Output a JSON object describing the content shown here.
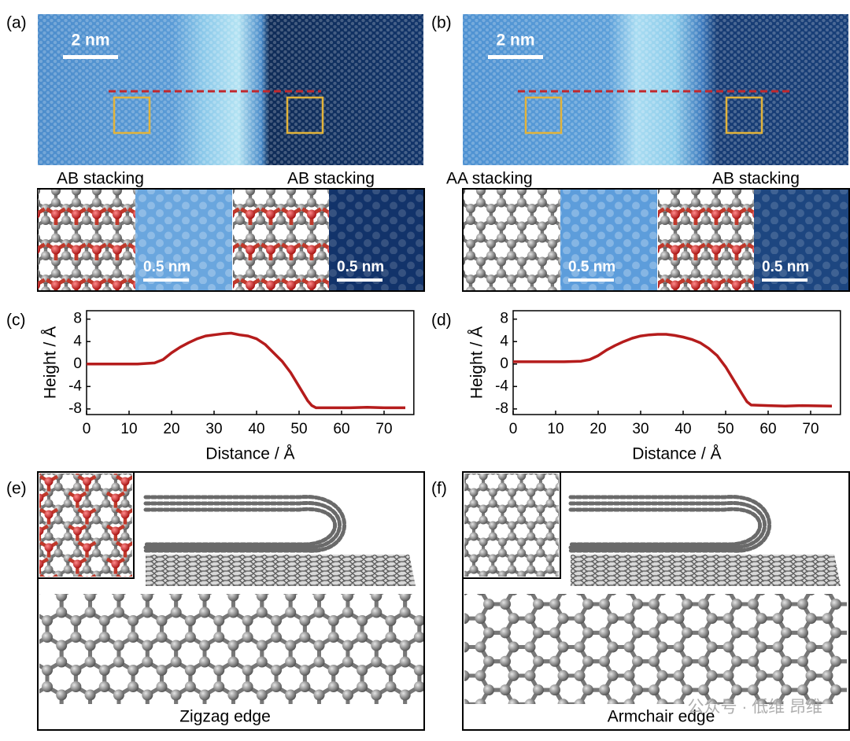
{
  "panels": [
    {
      "label": "(a)",
      "scale_bar": "2 nm",
      "stacking": [
        "AB stacking",
        "AB stacking"
      ],
      "inset_scale": [
        "0.5 nm",
        "0.5 nm"
      ]
    },
    {
      "label": "(b)",
      "scale_bar": "2 nm",
      "stacking": [
        "AA stacking",
        "AB stacking"
      ],
      "inset_scale": [
        "0.5 nm",
        "0.5 nm"
      ]
    }
  ],
  "chart_data": [
    {
      "type": "line",
      "label": "(c)",
      "xlabel": "Distance / Å",
      "ylabel": "Height / Å",
      "x": [
        0,
        4,
        8,
        12,
        16,
        18,
        20,
        22,
        24,
        26,
        28,
        30,
        32,
        34,
        36,
        38,
        40,
        42,
        44,
        46,
        48,
        50,
        52,
        53,
        54,
        58,
        62,
        66,
        70,
        75
      ],
      "series": [
        {
          "color": "#b51c1c",
          "values": [
            0,
            0,
            0,
            0,
            0.2,
            0.8,
            2,
            3,
            3.8,
            4.5,
            5,
            5.2,
            5.4,
            5.5,
            5.2,
            5,
            4.5,
            3.5,
            2,
            0.5,
            -1.5,
            -4,
            -6.5,
            -7.4,
            -7.8,
            -7.8,
            -7.8,
            -7.7,
            -7.8,
            -7.8
          ]
        }
      ],
      "xlim": [
        0,
        77
      ],
      "ylim": [
        -9,
        9.5
      ],
      "xticks": [
        0,
        10,
        20,
        30,
        40,
        50,
        60,
        70
      ],
      "yticks": [
        -8,
        -4,
        0,
        4,
        8
      ]
    },
    {
      "type": "line",
      "label": "(d)",
      "xlabel": "Distance / Å",
      "ylabel": "Height / Å",
      "x": [
        0,
        4,
        8,
        12,
        16,
        18,
        20,
        22,
        24,
        26,
        28,
        30,
        32,
        34,
        36,
        38,
        40,
        42,
        44,
        46,
        48,
        50,
        52,
        54,
        55,
        56,
        60,
        64,
        68,
        75
      ],
      "series": [
        {
          "color": "#b51c1c",
          "values": [
            0.4,
            0.4,
            0.4,
            0.4,
            0.5,
            0.8,
            1.5,
            2.5,
            3.3,
            4,
            4.6,
            5,
            5.2,
            5.3,
            5.3,
            5.1,
            4.8,
            4.4,
            3.8,
            2.8,
            1.5,
            -0.5,
            -3,
            -5.5,
            -6.7,
            -7.3,
            -7.4,
            -7.5,
            -7.4,
            -7.5
          ]
        }
      ],
      "xlim": [
        0,
        77
      ],
      "ylim": [
        -9,
        9.5
      ],
      "xticks": [
        0,
        10,
        20,
        30,
        40,
        50,
        60,
        70
      ],
      "yticks": [
        -8,
        -4,
        0,
        4,
        8
      ]
    }
  ],
  "models": [
    {
      "label": "(e)",
      "caption": "Zigzag edge"
    },
    {
      "label": "(f)",
      "caption": "Armchair edge"
    }
  ],
  "watermark": "公众号 · 低维 昂维"
}
